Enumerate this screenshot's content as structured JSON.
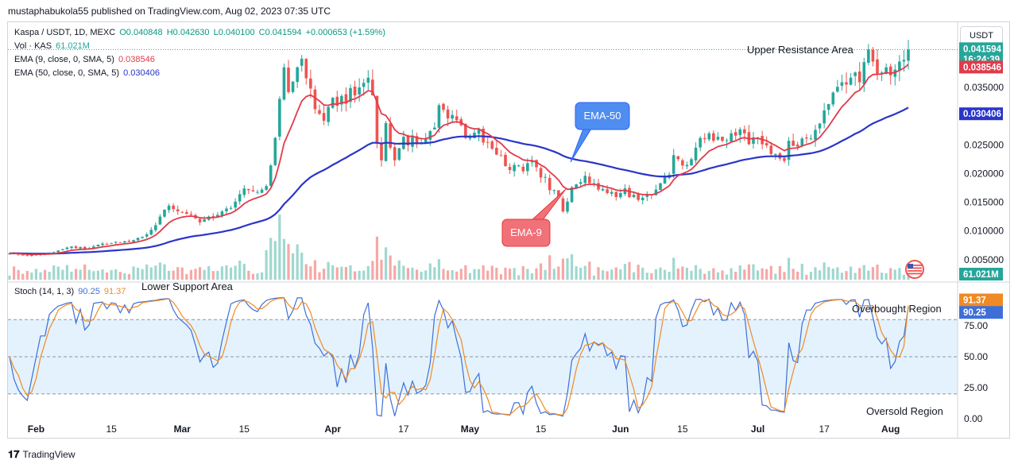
{
  "publisher_line": "mustaphabukola55 published on TradingView.com, Aug 02, 2023 07:35 UTC",
  "header": {
    "symbol": "Kaspa / USDT, 1D, MEXC",
    "ohlc": {
      "o": "O0.040848",
      "h": "H0.042630",
      "l": "L0.040100",
      "c": "C0.041594",
      "chg": "+0.000653 (+1.59%)"
    },
    "vol_label": "Vol · KAS",
    "vol_value": "61.021M",
    "ema9_label": "EMA (9, close, 0, SMA, 5)",
    "ema9_value": "0.038546",
    "ema50_label": "EMA (50, close, 0, SMA, 5)",
    "ema50_value": "0.030406",
    "stoch_label": "Stoch (14, 1, 3)",
    "stoch_k": "90.25",
    "stoch_d": "91.37"
  },
  "currency_button": "USDT",
  "footer_brand": "TradingView",
  "colors": {
    "up": "#26a69a",
    "down": "#ef5350",
    "ema9": "#e03b4b",
    "ema50": "#2a35c9",
    "stoch_k": "#3e6fd8",
    "stoch_d": "#f08a24",
    "band": "#e3f2fd"
  },
  "annotations": {
    "upper_resistance": "Upper Resistance Area",
    "lower_support": "Lower Support Area",
    "overbought": "Overbought Region",
    "oversold": "Oversold Region",
    "ema50_callout": "EMA-50",
    "ema9_callout": "EMA-9"
  },
  "price_badges": {
    "last": "0.041594",
    "countdown": "16:24:39",
    "ema9": "0.038546",
    "ema50": "0.030406",
    "volume": "61.021M",
    "stoch_d": "91.37",
    "stoch_k": "90.25"
  },
  "chart_data": {
    "type": "candlestick",
    "x_tick_labels": [
      "Feb",
      "15",
      "Mar",
      "15",
      "Apr",
      "17",
      "May",
      "15",
      "Jun",
      "15",
      "Jul",
      "17",
      "Aug"
    ],
    "price_axis_ticks": [
      "0.035000",
      "0.025000",
      "0.020000",
      "0.015000",
      "0.010000",
      "0.005000"
    ],
    "stoch_axis_ticks": [
      "75.00",
      "50.00",
      "25.00",
      "0.00"
    ],
    "price_ylim": [
      0.004,
      0.044
    ],
    "stoch_ylim": [
      0,
      100
    ],
    "stoch_band": [
      20,
      80
    ],
    "closes": [
      0.0061,
      0.006,
      0.0059,
      0.0058,
      0.0057,
      0.0058,
      0.0059,
      0.006,
      0.006,
      0.0061,
      0.0063,
      0.0066,
      0.0068,
      0.0071,
      0.0073,
      0.007,
      0.0072,
      0.0069,
      0.007,
      0.0073,
      0.0076,
      0.0078,
      0.0077,
      0.0079,
      0.0081,
      0.008,
      0.0082,
      0.0081,
      0.0084,
      0.0088,
      0.009,
      0.0094,
      0.0102,
      0.011,
      0.0125,
      0.0137,
      0.0144,
      0.0138,
      0.0134,
      0.0132,
      0.013,
      0.0128,
      0.0122,
      0.0115,
      0.012,
      0.0125,
      0.0124,
      0.0128,
      0.0134,
      0.0139,
      0.014,
      0.0151,
      0.0164,
      0.0174,
      0.0171,
      0.0169,
      0.0168,
      0.0172,
      0.0178,
      0.0214,
      0.0262,
      0.033,
      0.0385,
      0.0342,
      0.036,
      0.0385,
      0.04,
      0.0366,
      0.0348,
      0.0312,
      0.0304,
      0.0292,
      0.0316,
      0.0332,
      0.0318,
      0.0335,
      0.0322,
      0.0349,
      0.0336,
      0.035,
      0.0358,
      0.0367,
      0.0336,
      0.0252,
      0.0223,
      0.0288,
      0.0245,
      0.0223,
      0.0244,
      0.0264,
      0.0249,
      0.0266,
      0.0251,
      0.0254,
      0.0261,
      0.0274,
      0.028,
      0.0319,
      0.0311,
      0.0296,
      0.0302,
      0.0293,
      0.0284,
      0.0262,
      0.0264,
      0.0271,
      0.0277,
      0.0254,
      0.0255,
      0.0243,
      0.0233,
      0.0231,
      0.0213,
      0.0206,
      0.0215,
      0.0214,
      0.0204,
      0.0218,
      0.0222,
      0.0211,
      0.0193,
      0.0194,
      0.0171,
      0.0171,
      0.0158,
      0.0134,
      0.0151,
      0.0176,
      0.0181,
      0.0185,
      0.0196,
      0.0183,
      0.0183,
      0.0172,
      0.0173,
      0.0166,
      0.0168,
      0.0159,
      0.0166,
      0.0174,
      0.0159,
      0.0163,
      0.0154,
      0.0158,
      0.0163,
      0.0162,
      0.0172,
      0.0183,
      0.0194,
      0.0198,
      0.0232,
      0.0225,
      0.0214,
      0.0215,
      0.0225,
      0.0245,
      0.0262,
      0.026,
      0.027,
      0.0257,
      0.0264,
      0.0257,
      0.0258,
      0.027,
      0.0266,
      0.0277,
      0.027,
      0.0251,
      0.0263,
      0.0263,
      0.0251,
      0.0249,
      0.0234,
      0.0234,
      0.0226,
      0.0222,
      0.0257,
      0.0248,
      0.0247,
      0.0261,
      0.0261,
      0.0261,
      0.0276,
      0.0287,
      0.031,
      0.0321,
      0.0341,
      0.0351,
      0.0359,
      0.0355,
      0.0367,
      0.0376,
      0.0359,
      0.0394,
      0.0416,
      0.0395,
      0.0374,
      0.0376,
      0.0385,
      0.0371,
      0.0381,
      0.0395,
      0.0398,
      0.0416
    ],
    "ema9_last": 0.038546,
    "ema50_last": 0.030406,
    "volume_last": "61.021M",
    "stoch_k_last": 90.25,
    "stoch_d_last": 91.37
  }
}
